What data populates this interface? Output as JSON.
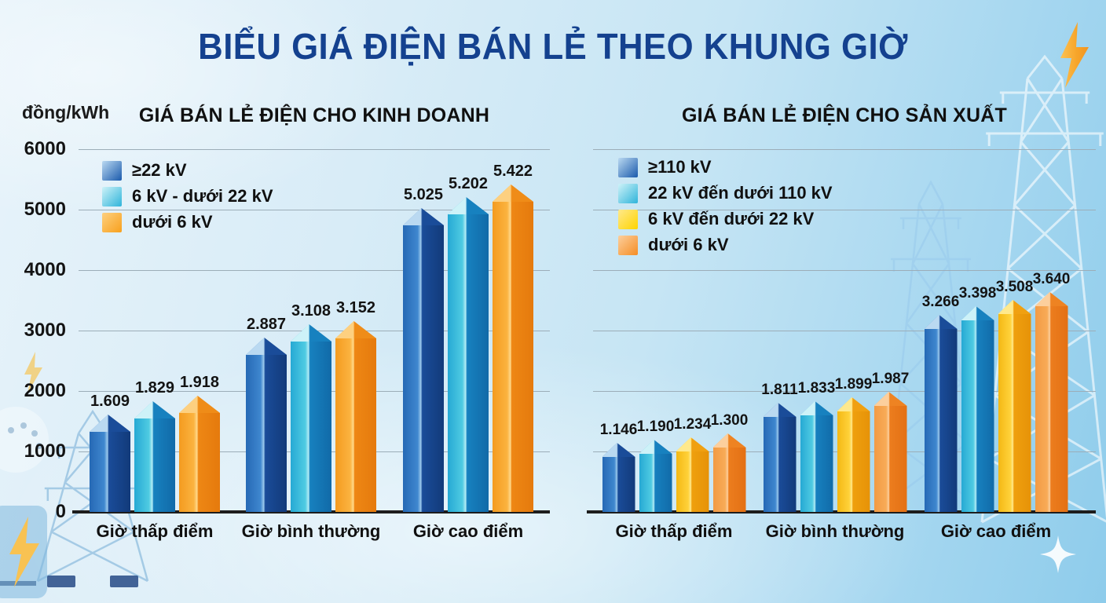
{
  "title": "BIỂU GIÁ ĐIỆN BÁN LẺ THEO KHUNG GIỜ",
  "unit_label": "đồng/kWh",
  "title_color": "#14418f",
  "axis": {
    "ticks": [
      "6000",
      "5000",
      "4000",
      "3000",
      "2000",
      "1000",
      "0"
    ],
    "ylim": [
      0,
      6000
    ]
  },
  "chart_data": [
    {
      "type": "bar",
      "title": "GIÁ BÁN LẺ ĐIỆN CHO KINH DOANH",
      "ylabel": "đồng/kWh",
      "ylim": [
        0,
        6000
      ],
      "yticks": [
        6000,
        5000,
        4000,
        3000,
        2000,
        1000,
        0
      ],
      "grid": true,
      "legend_position": "top-left",
      "categories": [
        "Giờ thấp điểm",
        "Giờ bình thường",
        "Giờ cao điểm"
      ],
      "series": [
        {
          "name": "≥22 kV",
          "values": [
            1609,
            2887,
            5025
          ],
          "labels": [
            "1.609",
            "2.887",
            "5.025"
          ],
          "colors": {
            "face_left": "#2669b5",
            "face_left_bright": "#3f87cf",
            "ridge": "#9cc9ec",
            "face_right": "#1a4c99",
            "face_right_deep": "#123a7a",
            "cap_left": "#bad9f1",
            "cap_right": "#1a4c99",
            "swatch": "#1a5aac"
          }
        },
        {
          "name": "6 kV - dưới 22 kV",
          "values": [
            1829,
            3108,
            5202
          ],
          "labels": [
            "1.829",
            "3.108",
            "5.202"
          ],
          "colors": {
            "face_left": "#26a9d4",
            "face_left_bright": "#4fcbe2",
            "ridge": "#b3ecf5",
            "face_right": "#1781bf",
            "face_right_deep": "#116aa8",
            "cap_left": "#cdf2f8",
            "cap_right": "#1781bf",
            "swatch": "#2fb4da"
          }
        },
        {
          "name": "dưới 6 kV",
          "values": [
            1918,
            3152,
            5422
          ],
          "labels": [
            "1.918",
            "3.152",
            "5.422"
          ],
          "colors": {
            "face_left": "#f49b1f",
            "face_left_bright": "#fbb340",
            "ridge": "#ffd98a",
            "face_right": "#ee8714",
            "face_right_deep": "#e57a0d",
            "cap_left": "#fdd080",
            "cap_right": "#ef8c18",
            "swatch": "#f8a01d"
          }
        }
      ]
    },
    {
      "type": "bar",
      "title": "GIÁ BÁN LẺ ĐIỆN CHO SẢN XUẤT",
      "ylabel": "đồng/kWh",
      "ylim": [
        0,
        6000
      ],
      "yticks": [
        6000,
        5000,
        4000,
        3000,
        2000,
        1000,
        0
      ],
      "grid": true,
      "legend_position": "top-left",
      "categories": [
        "Giờ thấp điểm",
        "Giờ bình thường",
        "Giờ cao điểm"
      ],
      "series": [
        {
          "name": "≥110 kV",
          "values": [
            1146,
            1811,
            3266
          ],
          "labels": [
            "1.146",
            "1.811",
            "3.266"
          ],
          "colors": {
            "face_left": "#2669b5",
            "face_left_bright": "#3f87cf",
            "ridge": "#9cc9ec",
            "face_right": "#1a4c99",
            "face_right_deep": "#123a7a",
            "cap_left": "#bad9f1",
            "cap_right": "#1a4c99",
            "swatch": "#1a5aac"
          }
        },
        {
          "name": "22 kV đến dưới 110 kV",
          "values": [
            1190,
            1833,
            3398
          ],
          "labels": [
            "1.190",
            "1.833",
            "3.398"
          ],
          "colors": {
            "face_left": "#26a9d4",
            "face_left_bright": "#4fcbe2",
            "ridge": "#b3ecf5",
            "face_right": "#1781bf",
            "face_right_deep": "#116aa8",
            "cap_left": "#cdf2f8",
            "cap_right": "#1781bf",
            "swatch": "#2fb4da"
          }
        },
        {
          "name": "6 kV đến dưới 22 kV",
          "values": [
            1234,
            1899,
            3508
          ],
          "labels": [
            "1.234",
            "1.899",
            "3.508"
          ],
          "colors": {
            "face_left": "#f4b814",
            "face_left_bright": "#ffd23a",
            "ridge": "#ffe98c",
            "face_right": "#efa00e",
            "face_right_deep": "#e69208",
            "cap_left": "#ffe98c",
            "cap_right": "#f0a011",
            "swatch": "#ffd400"
          }
        },
        {
          "name": "dưới 6 kV",
          "values": [
            1300,
            1987,
            3640
          ],
          "labels": [
            "1.300",
            "1.987",
            "3.640"
          ],
          "colors": {
            "face_left": "#f29a44",
            "face_left_bright": "#f8ab57",
            "ridge": "#fccf9d",
            "face_right": "#ec7d1e",
            "face_right_deep": "#e37014",
            "cap_left": "#fccf9d",
            "cap_right": "#ee8322",
            "swatch": "#f58d24"
          }
        }
      ]
    }
  ]
}
